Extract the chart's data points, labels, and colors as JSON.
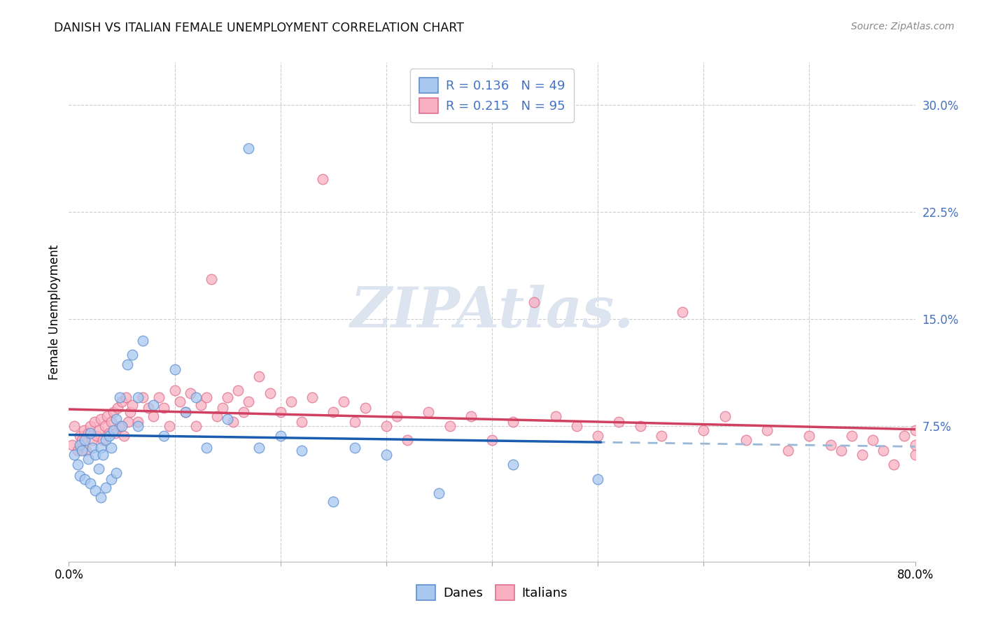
{
  "title": "DANISH VS ITALIAN FEMALE UNEMPLOYMENT CORRELATION CHART",
  "source": "Source: ZipAtlas.com",
  "ylabel": "Female Unemployment",
  "ytick_values": [
    0.0,
    0.075,
    0.15,
    0.225,
    0.3
  ],
  "ytick_labels": [
    "",
    "7.5%",
    "15.0%",
    "22.5%",
    "30.0%"
  ],
  "xlim": [
    0.0,
    0.8
  ],
  "ylim": [
    -0.02,
    0.33
  ],
  "danes_R": 0.136,
  "danes_N": 49,
  "italians_R": 0.215,
  "italians_N": 95,
  "danes_color": "#a8c8f0",
  "italians_color": "#f8b0c0",
  "danes_edge_color": "#6090d0",
  "italians_edge_color": "#e07090",
  "danes_line_color": "#1a5cb0",
  "italians_line_color": "#d04060",
  "danes_dashed_color": "#99b8d8",
  "background_color": "#ffffff",
  "grid_color": "#cccccc",
  "legend_text_color": "#4472c4",
  "watermark": "ZIPAtlas.",
  "watermark_color": "#dce4f0",
  "danes_x": [
    0.005,
    0.008,
    0.01,
    0.01,
    0.012,
    0.015,
    0.015,
    0.018,
    0.02,
    0.02,
    0.022,
    0.025,
    0.025,
    0.028,
    0.03,
    0.03,
    0.032,
    0.035,
    0.035,
    0.038,
    0.04,
    0.04,
    0.042,
    0.045,
    0.045,
    0.048,
    0.05,
    0.055,
    0.06,
    0.065,
    0.065,
    0.07,
    0.08,
    0.09,
    0.1,
    0.11,
    0.12,
    0.13,
    0.15,
    0.17,
    0.18,
    0.2,
    0.22,
    0.25,
    0.27,
    0.3,
    0.35,
    0.42,
    0.5
  ],
  "danes_y": [
    0.055,
    0.048,
    0.062,
    0.04,
    0.058,
    0.065,
    0.038,
    0.052,
    0.07,
    0.035,
    0.06,
    0.055,
    0.03,
    0.045,
    0.06,
    0.025,
    0.055,
    0.065,
    0.032,
    0.068,
    0.06,
    0.038,
    0.072,
    0.08,
    0.042,
    0.095,
    0.075,
    0.118,
    0.125,
    0.095,
    0.075,
    0.135,
    0.09,
    0.068,
    0.115,
    0.085,
    0.095,
    0.06,
    0.08,
    0.27,
    0.06,
    0.068,
    0.058,
    0.022,
    0.06,
    0.055,
    0.028,
    0.048,
    0.038
  ],
  "italians_x": [
    0.003,
    0.005,
    0.008,
    0.01,
    0.012,
    0.014,
    0.016,
    0.018,
    0.02,
    0.022,
    0.024,
    0.026,
    0.028,
    0.03,
    0.032,
    0.034,
    0.036,
    0.038,
    0.04,
    0.042,
    0.044,
    0.046,
    0.048,
    0.05,
    0.052,
    0.054,
    0.056,
    0.058,
    0.06,
    0.065,
    0.07,
    0.075,
    0.08,
    0.085,
    0.09,
    0.095,
    0.1,
    0.105,
    0.11,
    0.115,
    0.12,
    0.125,
    0.13,
    0.135,
    0.14,
    0.145,
    0.15,
    0.155,
    0.16,
    0.165,
    0.17,
    0.18,
    0.19,
    0.2,
    0.21,
    0.22,
    0.23,
    0.24,
    0.25,
    0.26,
    0.27,
    0.28,
    0.3,
    0.31,
    0.32,
    0.34,
    0.36,
    0.38,
    0.4,
    0.42,
    0.44,
    0.46,
    0.48,
    0.5,
    0.52,
    0.54,
    0.56,
    0.58,
    0.6,
    0.62,
    0.64,
    0.66,
    0.68,
    0.7,
    0.72,
    0.73,
    0.74,
    0.75,
    0.76,
    0.77,
    0.78,
    0.79,
    0.8,
    0.8,
    0.8
  ],
  "italians_y": [
    0.062,
    0.075,
    0.058,
    0.068,
    0.065,
    0.072,
    0.058,
    0.07,
    0.075,
    0.065,
    0.078,
    0.068,
    0.072,
    0.08,
    0.065,
    0.075,
    0.082,
    0.07,
    0.078,
    0.085,
    0.07,
    0.088,
    0.075,
    0.092,
    0.068,
    0.095,
    0.078,
    0.085,
    0.09,
    0.078,
    0.095,
    0.088,
    0.082,
    0.095,
    0.088,
    0.075,
    0.1,
    0.092,
    0.085,
    0.098,
    0.075,
    0.09,
    0.095,
    0.178,
    0.082,
    0.088,
    0.095,
    0.078,
    0.1,
    0.085,
    0.092,
    0.11,
    0.098,
    0.085,
    0.092,
    0.078,
    0.095,
    0.248,
    0.085,
    0.092,
    0.078,
    0.088,
    0.075,
    0.082,
    0.065,
    0.085,
    0.075,
    0.082,
    0.065,
    0.078,
    0.162,
    0.082,
    0.075,
    0.068,
    0.078,
    0.075,
    0.068,
    0.155,
    0.072,
    0.082,
    0.065,
    0.072,
    0.058,
    0.068,
    0.062,
    0.058,
    0.068,
    0.055,
    0.065,
    0.058,
    0.048,
    0.068,
    0.055,
    0.062,
    0.072
  ]
}
